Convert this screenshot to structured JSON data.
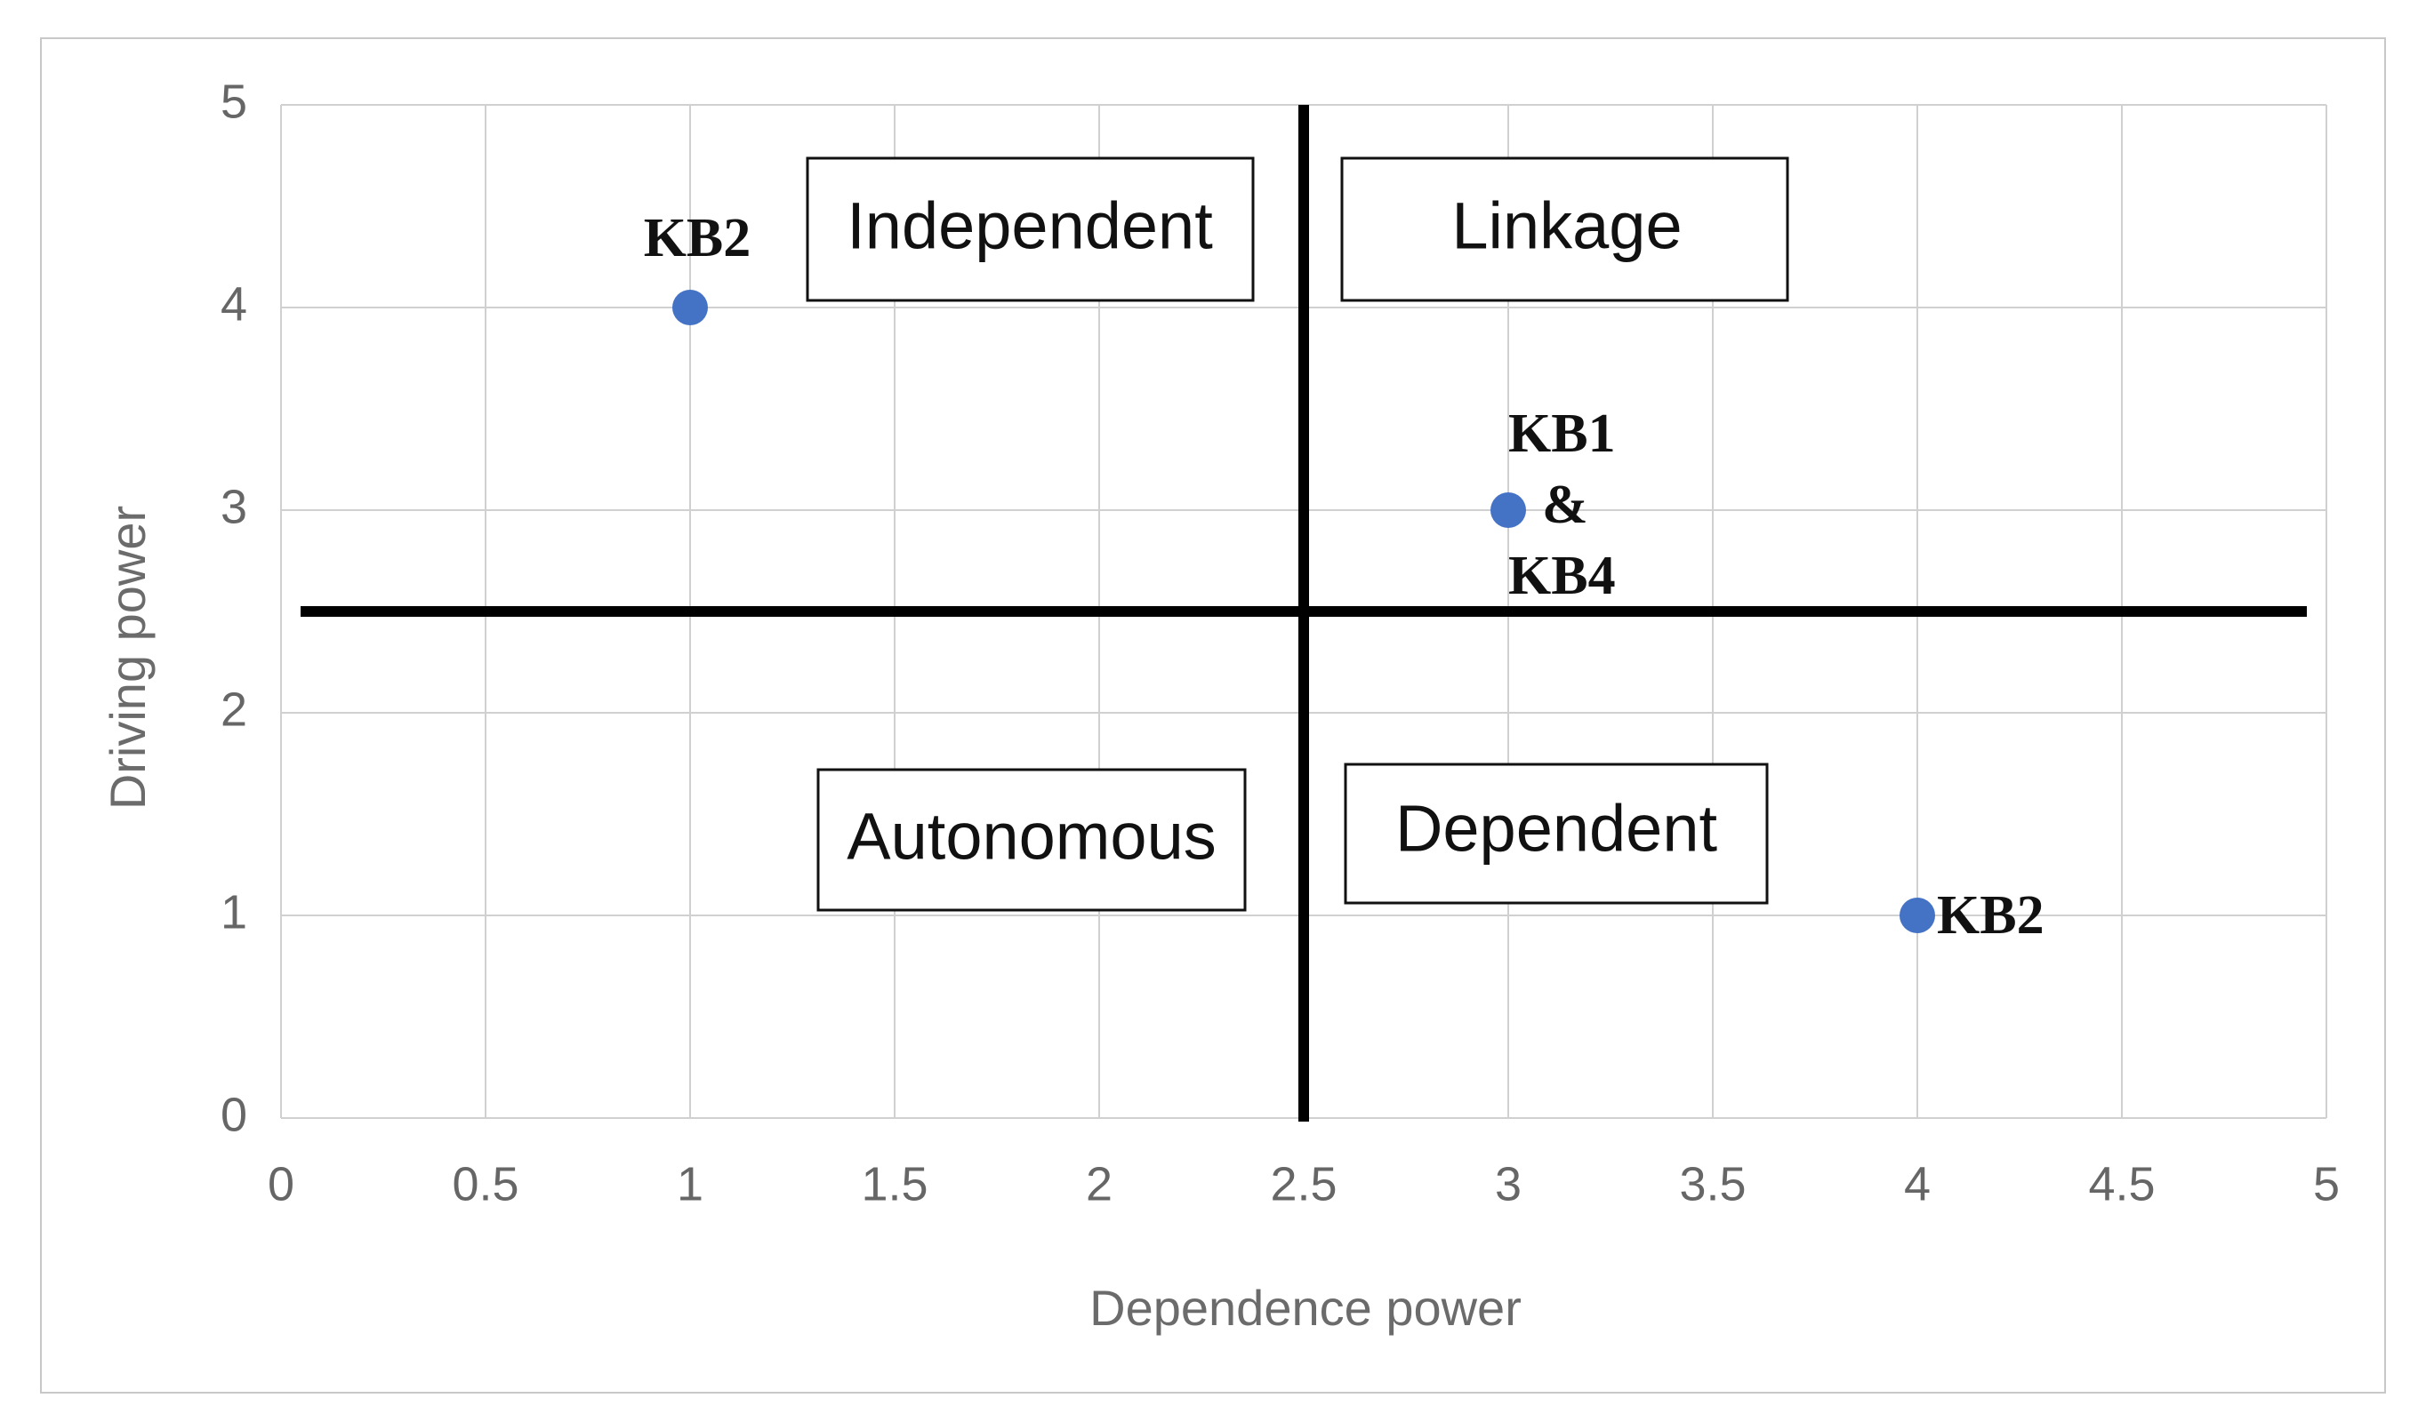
{
  "chart_data": {
    "type": "scatter",
    "xlabel": "Dependence power",
    "ylabel": "Driving power",
    "xlim": [
      0,
      5
    ],
    "ylim": [
      0,
      5
    ],
    "x_ticks": [
      "0",
      "0.5",
      "1",
      "1.5",
      "2",
      "2.5",
      "3",
      "3.5",
      "4",
      "4.5",
      "5"
    ],
    "y_ticks": [
      "0",
      "1",
      "2",
      "3",
      "4",
      "5"
    ],
    "grid": true,
    "points": [
      {
        "x": 1,
        "y": 4,
        "label_lines": [
          "KB2"
        ]
      },
      {
        "x": 3,
        "y": 3,
        "label_lines": [
          "KB1",
          "&",
          "KB4"
        ]
      },
      {
        "x": 4,
        "y": 1,
        "label_lines": [
          "KB2"
        ]
      }
    ],
    "dividers": {
      "x": 2.5,
      "y": 2.5
    },
    "quadrants": {
      "top_left": "Independent",
      "top_right": "Linkage",
      "bottom_left": "Autonomous",
      "bottom_right": "Dependent"
    },
    "colors": {
      "point": "#4472c4",
      "grid": "#d0d0d0",
      "divider": "#000000"
    }
  }
}
